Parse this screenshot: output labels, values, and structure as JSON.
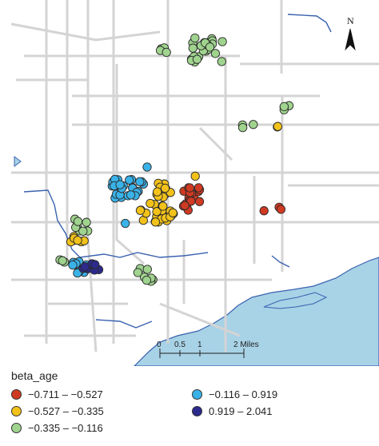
{
  "map": {
    "water_color": "#a8d2e6",
    "road_color": "#d4d4d4",
    "coastline_color": "#3a62b0"
  },
  "north_arrow": {
    "label": "N"
  },
  "scale_bar": {
    "ticks": [
      "0",
      "0.5",
      "1",
      "2 Miles"
    ]
  },
  "legend": {
    "title": "beta_age",
    "items": [
      {
        "label": "−0.711 – −0.527",
        "color": "#cf3a22"
      },
      {
        "label": "−0.527 – −0.335",
        "color": "#f2c21a"
      },
      {
        "label": "−0.335 – −0.116",
        "color": "#9fd38e"
      },
      {
        "label": "−0.116 – 0.919",
        "color": "#3ab2e8"
      },
      {
        "label": "0.919 – 2.041",
        "color": "#2c2a8c"
      }
    ]
  }
}
